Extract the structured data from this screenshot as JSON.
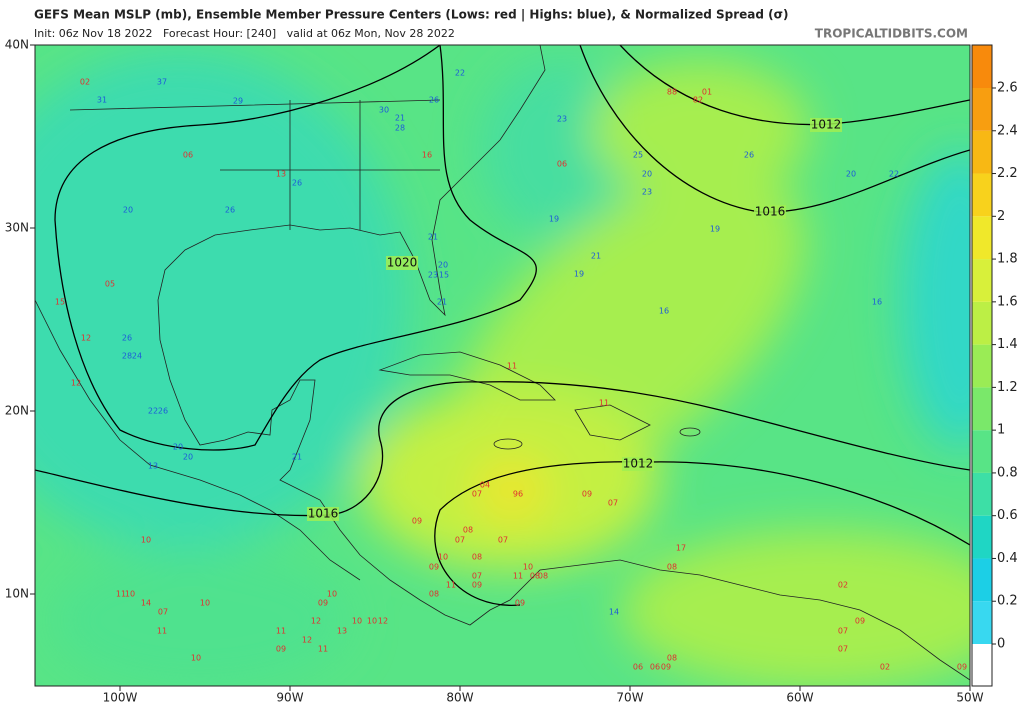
{
  "header": {
    "title": "GEFS Mean MSLP (mb), Ensemble Member Pressure Centers (Lows: red | Highs: blue), & Normalized Spread (σ)",
    "subtitle": "Init: 06z Nov 18 2022   Forecast Hour: [240]   valid at 06z Mon, Nov 28 2022",
    "brand": "TROPICALTIDBITS.COM"
  },
  "map": {
    "lat_ticks": [
      {
        "value": 40,
        "label": "40N"
      },
      {
        "value": 30,
        "label": "30N"
      },
      {
        "value": 20,
        "label": "20N"
      },
      {
        "value": 10,
        "label": "10N"
      }
    ],
    "lon_ticks": [
      {
        "value": -100,
        "label": "100W"
      },
      {
        "value": -90,
        "label": "90W"
      },
      {
        "value": -80,
        "label": "80W"
      },
      {
        "value": -70,
        "label": "70W"
      },
      {
        "value": -60,
        "label": "60W"
      },
      {
        "value": -50,
        "label": "50W"
      }
    ],
    "isobar_labels": [
      "1020",
      "1016",
      "1012",
      "1012",
      "1016"
    ],
    "highs": [
      "37",
      "31",
      "29",
      "22",
      "26",
      "30",
      "21",
      "28",
      "23",
      "25",
      "20",
      "23",
      "26",
      "20",
      "22",
      "26",
      "26",
      "20",
      "19",
      "21",
      "21",
      "20",
      "23",
      "15",
      "19",
      "21",
      "16",
      "16",
      "19",
      "26",
      "24",
      "28",
      "22",
      "26",
      "20",
      "20",
      "13",
      "21",
      "14"
    ],
    "lows": [
      "02",
      "06",
      "13",
      "16",
      "06",
      "88",
      "01",
      "82",
      "05",
      "15",
      "12",
      "12",
      "11",
      "11",
      "04",
      "07",
      "96",
      "09",
      "07",
      "09",
      "08",
      "07",
      "07",
      "10",
      "08",
      "09",
      "10",
      "07",
      "11",
      "11",
      "09",
      "08",
      "08",
      "17",
      "08",
      "02",
      "10",
      "11",
      "10",
      "14",
      "07",
      "10",
      "09",
      "10",
      "10",
      "10",
      "12",
      "08",
      "09",
      "11",
      "12",
      "13",
      "11",
      "12",
      "09",
      "11",
      "10",
      "07",
      "09",
      "07",
      "09",
      "02",
      "08",
      "06",
      "06",
      "09"
    ]
  },
  "colorbar": {
    "ticks": [
      0,
      0.2,
      0.4,
      0.6,
      0.8,
      1,
      1.2,
      1.4,
      1.6,
      1.8,
      2,
      2.2,
      2.4,
      2.6
    ],
    "colors": [
      "#38d8f0",
      "#1ccfe6",
      "#1fd6c4",
      "#3ddfa6",
      "#58e486",
      "#7ae86a",
      "#9aec55",
      "#bcef45",
      "#d8f03a",
      "#f0e82a",
      "#f8d21c",
      "#f8b814",
      "#f89e10",
      "#f88a0c"
    ]
  }
}
